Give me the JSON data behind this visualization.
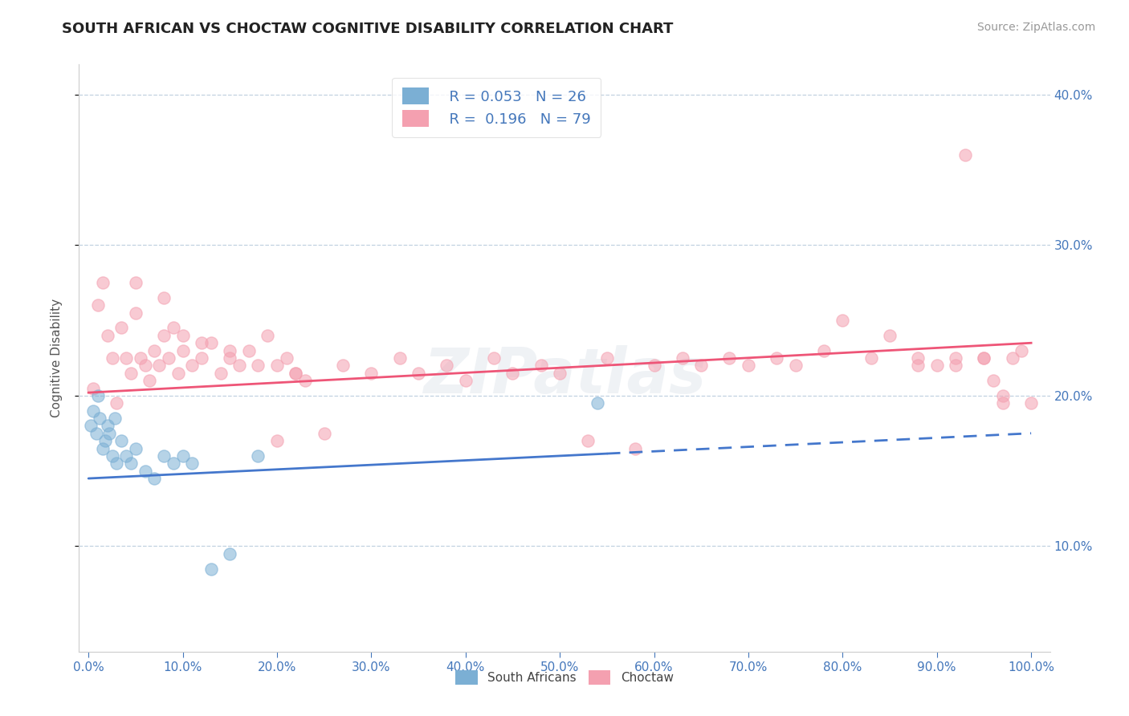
{
  "title": "SOUTH AFRICAN VS CHOCTAW COGNITIVE DISABILITY CORRELATION CHART",
  "source": "Source: ZipAtlas.com",
  "ylabel": "Cognitive Disability",
  "color_blue": "#7BAFD4",
  "color_pink": "#F4A0B0",
  "color_trendline_blue": "#4477CC",
  "color_trendline_pink": "#EE5577",
  "color_axis_label": "#4477BB",
  "color_grid": "#BBCCDD",
  "color_title": "#222222",
  "watermark": "ZIPatlas",
  "legend_r1": "R = 0.053",
  "legend_n1": "N = 26",
  "legend_r2": "R =  0.196",
  "legend_n2": "N = 79",
  "south_africans_x": [
    0.2,
    0.5,
    0.8,
    1.0,
    1.2,
    1.5,
    1.8,
    2.0,
    2.2,
    2.5,
    2.8,
    3.0,
    3.5,
    4.0,
    4.5,
    5.0,
    6.0,
    7.0,
    8.0,
    9.0,
    10.0,
    11.0,
    13.0,
    15.0,
    54.0,
    18.0
  ],
  "south_africans_y": [
    18.0,
    19.0,
    17.5,
    20.0,
    18.5,
    16.5,
    17.0,
    18.0,
    17.5,
    16.0,
    18.5,
    15.5,
    17.0,
    16.0,
    15.5,
    16.5,
    15.0,
    14.5,
    16.0,
    15.5,
    16.0,
    15.5,
    8.5,
    9.5,
    19.5,
    16.0
  ],
  "choctaw_x": [
    0.5,
    1.0,
    1.5,
    2.0,
    2.5,
    3.0,
    3.5,
    4.0,
    4.5,
    5.0,
    5.5,
    6.0,
    6.5,
    7.0,
    7.5,
    8.0,
    8.5,
    9.0,
    9.5,
    10.0,
    11.0,
    12.0,
    13.0,
    14.0,
    15.0,
    16.0,
    17.0,
    18.0,
    19.0,
    20.0,
    21.0,
    22.0,
    23.0,
    25.0,
    27.0,
    30.0,
    33.0,
    35.0,
    38.0,
    40.0,
    43.0,
    45.0,
    48.0,
    50.0,
    53.0,
    55.0,
    58.0,
    60.0,
    63.0,
    65.0,
    68.0,
    70.0,
    73.0,
    75.0,
    78.0,
    80.0,
    83.0,
    85.0,
    88.0,
    90.0,
    92.0,
    93.0,
    95.0,
    96.0,
    97.0,
    98.0,
    99.0,
    100.0,
    88.0,
    92.0,
    95.0,
    97.0,
    5.0,
    8.0,
    10.0,
    12.0,
    15.0,
    20.0,
    22.0
  ],
  "choctaw_y": [
    20.5,
    26.0,
    27.5,
    24.0,
    22.5,
    19.5,
    24.5,
    22.5,
    21.5,
    25.5,
    22.5,
    22.0,
    21.0,
    23.0,
    22.0,
    24.0,
    22.5,
    24.5,
    21.5,
    23.0,
    22.0,
    22.5,
    23.5,
    21.5,
    23.0,
    22.0,
    23.0,
    22.0,
    24.0,
    17.0,
    22.5,
    21.5,
    21.0,
    17.5,
    22.0,
    21.5,
    22.5,
    21.5,
    22.0,
    21.0,
    22.5,
    21.5,
    22.0,
    21.5,
    17.0,
    22.5,
    16.5,
    22.0,
    22.5,
    22.0,
    22.5,
    22.0,
    22.5,
    22.0,
    23.0,
    25.0,
    22.5,
    24.0,
    22.5,
    22.0,
    22.5,
    36.0,
    22.5,
    21.0,
    20.0,
    22.5,
    23.0,
    19.5,
    22.0,
    22.0,
    22.5,
    19.5,
    27.5,
    26.5,
    24.0,
    23.5,
    22.5,
    22.0,
    21.5
  ],
  "sa_trend_x0": 0.0,
  "sa_trend_x1": 100.0,
  "sa_trend_y0": 14.5,
  "sa_trend_y1": 17.5,
  "sa_solid_end": 55.0,
  "ch_trend_x0": 0.0,
  "ch_trend_x1": 100.0,
  "ch_trend_y0": 20.2,
  "ch_trend_y1": 23.5,
  "xlim_min": -1.0,
  "xlim_max": 102.0,
  "ylim_min": 3.0,
  "ylim_max": 42.0,
  "xticks": [
    0,
    10,
    20,
    30,
    40,
    50,
    60,
    70,
    80,
    90,
    100
  ],
  "yticks": [
    10,
    20,
    30,
    40
  ]
}
